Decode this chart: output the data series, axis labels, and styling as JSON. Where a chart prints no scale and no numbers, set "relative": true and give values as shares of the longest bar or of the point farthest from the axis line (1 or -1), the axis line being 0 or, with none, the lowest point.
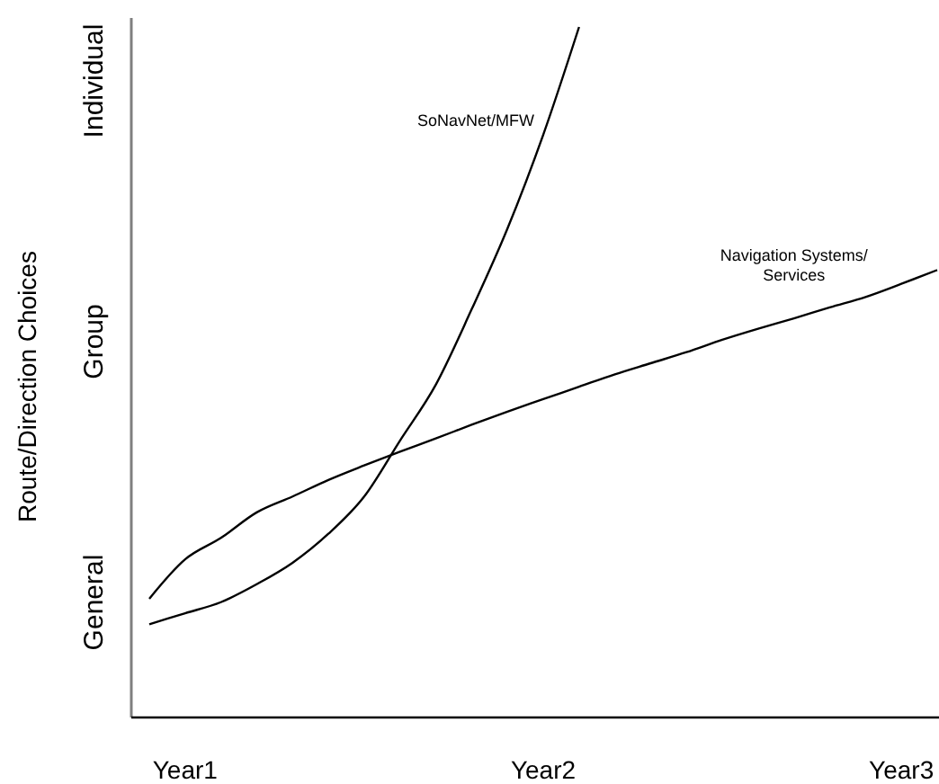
{
  "chart_data": {
    "type": "line",
    "relative": true,
    "ylabel": "Route/Direction Choices",
    "categories": [
      null,
      "Year1",
      null,
      null,
      null,
      null,
      null,
      null,
      null,
      null,
      null,
      "Year2",
      null,
      null,
      null,
      null,
      null,
      null,
      null,
      null,
      null,
      "Year3",
      null
    ],
    "annotations": [
      "General",
      "Group",
      "Individual"
    ],
    "series": [
      {
        "name": "SoNavNet/MFW",
        "color": "#000000",
        "values": [
          0.135,
          0.151,
          0.167,
          0.193,
          0.224,
          0.266,
          0.32,
          0.401,
          0.482,
          0.591,
          0.708,
          0.844,
          1,
          null,
          null,
          null,
          null,
          null,
          null,
          null,
          null,
          null,
          null
        ]
      },
      {
        "name": "Navigation Systems/Services",
        "color": "#000000",
        "values": [
          0.172,
          0.229,
          0.26,
          0.297,
          0.32,
          0.344,
          0.365,
          0.385,
          0.404,
          0.424,
          0.443,
          0.461,
          0.479,
          0.497,
          0.513,
          0.529,
          0.547,
          0.563,
          0.578,
          0.594,
          0.609,
          0.628,
          0.648
        ]
      }
    ]
  }
}
